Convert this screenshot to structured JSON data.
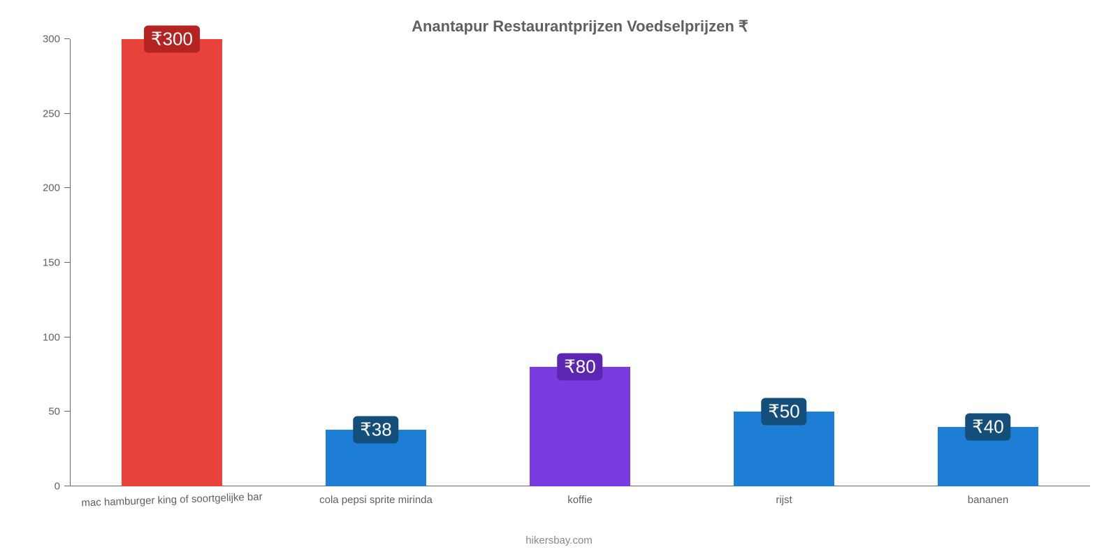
{
  "chart": {
    "type": "bar",
    "title": "Anantapur Restaurantprijzen Voedselprijzen ₹",
    "title_fontsize": 22,
    "title_color": "#606060",
    "background_color": "#ffffff",
    "axis_color": "#666666",
    "label_color": "#606060",
    "label_fontsize": 15,
    "badge_text_color": "#ffffff",
    "badge_fontsize": 26,
    "ylim": [
      0,
      300
    ],
    "ytick_step": 50,
    "yticks": [
      0,
      50,
      100,
      150,
      200,
      250,
      300
    ],
    "bar_width_pct": 49,
    "slot_width_pct": 20,
    "categories": [
      "mac hamburger king of soortgelijke bar",
      "cola pepsi sprite mirinda",
      "koffie",
      "rijst",
      "bananen"
    ],
    "values": [
      300,
      38,
      80,
      50,
      40
    ],
    "value_labels": [
      "₹300",
      "₹38",
      "₹80",
      "₹50",
      "₹40"
    ],
    "bar_colors": [
      "#e8423b",
      "#1e7ed6",
      "#7a3ce0",
      "#1e7ed6",
      "#1e7ed6"
    ],
    "badge_bg_colors": [
      "#b42521",
      "#134f7a",
      "#5c26b2",
      "#134f7a",
      "#134f7a"
    ],
    "credit": "hikersbay.com",
    "credit_color": "#888888"
  }
}
